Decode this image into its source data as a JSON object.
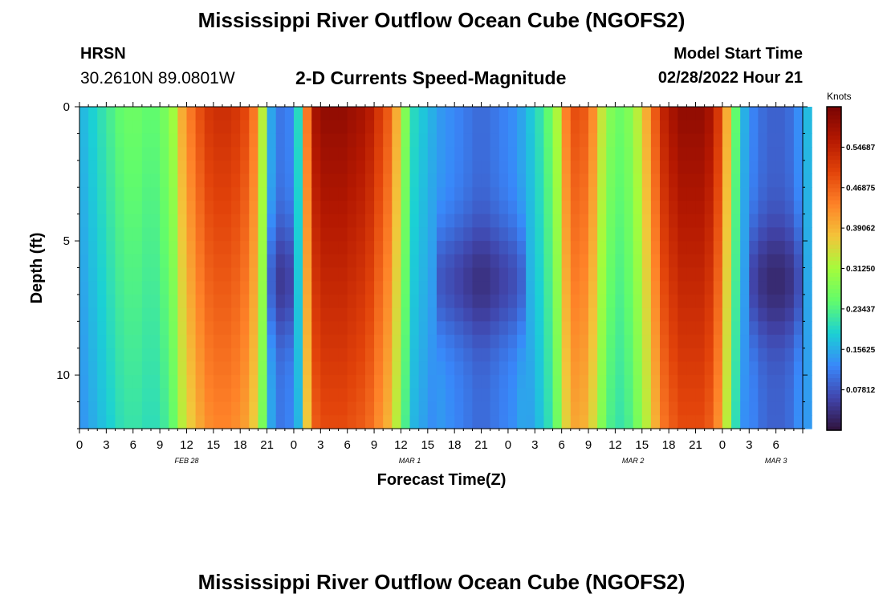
{
  "header": {
    "title": "Mississippi River Outflow Ocean Cube (NGOFS2)",
    "station": "HRSN",
    "coords": "30.2610N  89.0801W",
    "subtitle": "2-D Currents Speed-Magnitude",
    "model_start_label": "Model Start Time",
    "model_start_time": "02/28/2022 Hour 21"
  },
  "footer": {
    "title": "Mississippi River Outflow Ocean Cube (NGOFS2)"
  },
  "chart_data": {
    "type": "heatmap",
    "xlabel": "Forecast Time(Z)",
    "ylabel": "Depth (ft)",
    "colorbar_label": "Knots",
    "colorbar_ticks": [
      "0.54687",
      "0.46875",
      "0.39062",
      "0.31250",
      "0.23437",
      "0.15625",
      "0.07812"
    ],
    "colorbar_values": [
      0.54687,
      0.46875,
      0.39062,
      0.3125,
      0.23437,
      0.15625,
      0.07812
    ],
    "crange": [
      0,
      0.625
    ],
    "x_hours_range": [
      0,
      81
    ],
    "ylim": [
      0,
      12
    ],
    "y_ticks": [
      0,
      5,
      10
    ],
    "x_tick_labels": [
      "0",
      "3",
      "6",
      "9",
      "12",
      "15",
      "18",
      "21",
      "0",
      "3",
      "6",
      "9",
      "12",
      "15",
      "18",
      "21",
      "0",
      "3",
      "6",
      "9",
      "12",
      "15",
      "18",
      "21",
      "0",
      "3",
      "6"
    ],
    "date_labels": [
      {
        "text": "FEB 28",
        "hour": 12
      },
      {
        "text": "MAR 1",
        "hour": 37
      },
      {
        "text": "MAR 2",
        "hour": 62
      },
      {
        "text": "MAR 3",
        "hour": 78
      }
    ],
    "surface_profile_knots": [
      0.17,
      0.19,
      0.21,
      0.23,
      0.25,
      0.26,
      0.26,
      0.25,
      0.25,
      0.27,
      0.31,
      0.4,
      0.45,
      0.49,
      0.52,
      0.53,
      0.53,
      0.52,
      0.5,
      0.45,
      0.33,
      0.15,
      0.11,
      0.12,
      0.2,
      0.45,
      0.58,
      0.6,
      0.6,
      0.6,
      0.59,
      0.58,
      0.56,
      0.52,
      0.48,
      0.4,
      0.28,
      0.2,
      0.18,
      0.16,
      0.14,
      0.13,
      0.12,
      0.11,
      0.1,
      0.1,
      0.11,
      0.12,
      0.13,
      0.15,
      0.18,
      0.21,
      0.25,
      0.32,
      0.44,
      0.49,
      0.48,
      0.43,
      0.34,
      0.28,
      0.26,
      0.28,
      0.33,
      0.4,
      0.48,
      0.55,
      0.58,
      0.6,
      0.6,
      0.6,
      0.58,
      0.52,
      0.4,
      0.25,
      0.16,
      0.12,
      0.1,
      0.09,
      0.09,
      0.1,
      0.13,
      0.17
    ],
    "notes_depth_structure": "Speeds decrease with depth for most periods; low-speed pockets (~0.05 knots) appear near 5-8 ft around hour 22 and hours 75-79."
  }
}
